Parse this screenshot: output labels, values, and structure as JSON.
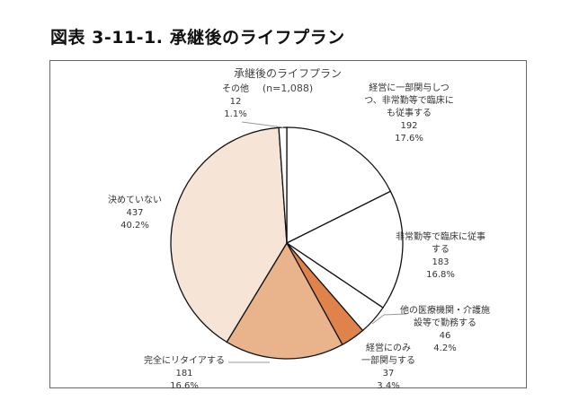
{
  "figure_title": "図表 3-11-1. 承継後のライフプラン",
  "chart_data": {
    "type": "pie",
    "title": "承継後のライフプラン",
    "subtitle": "(n=1,088)",
    "start": "top",
    "direction": "clockwise",
    "slices": [
      {
        "label": "経営に一部関与しつつ、非常勤等で臨床にも従事する",
        "lines": [
          "経営に一部関与しつ",
          "つ、非常勤等で臨床に",
          "も従事する"
        ],
        "count": "192",
        "percent": "17.6%",
        "value": 17.6,
        "color": "#FFFFFF"
      },
      {
        "label": "非常勤等で臨床に従事する",
        "lines": [
          "非常勤等で臨床に従事",
          "する"
        ],
        "count": "183",
        "percent": "16.8%",
        "value": 16.8,
        "color": "#FFFFFF"
      },
      {
        "label": "他の医療機関・介護施設等で勤務する",
        "lines": [
          "他の医療機関・介護施",
          "設等で勤務する"
        ],
        "count": "46",
        "percent": "4.2%",
        "value": 4.2,
        "color": "#FFFFFF"
      },
      {
        "label": "経営にのみ一部関与する",
        "lines": [
          "経営にのみ",
          "一部関与する"
        ],
        "count": "37",
        "percent": "3.4%",
        "value": 3.4,
        "color": "#E0834A"
      },
      {
        "label": "完全にリタイアする",
        "lines": [
          "完全にリタイアする"
        ],
        "count": "181",
        "percent": "16.6%",
        "value": 16.6,
        "color": "#E9B48B"
      },
      {
        "label": "決めていない",
        "lines": [
          "決めていない"
        ],
        "count": "437",
        "percent": "40.2%",
        "value": 40.2,
        "color": "#F6E4D7"
      },
      {
        "label": "その他",
        "lines": [
          "その他"
        ],
        "count": "12",
        "percent": "1.1%",
        "value": 1.1,
        "color": "#FFFFFF"
      }
    ]
  }
}
